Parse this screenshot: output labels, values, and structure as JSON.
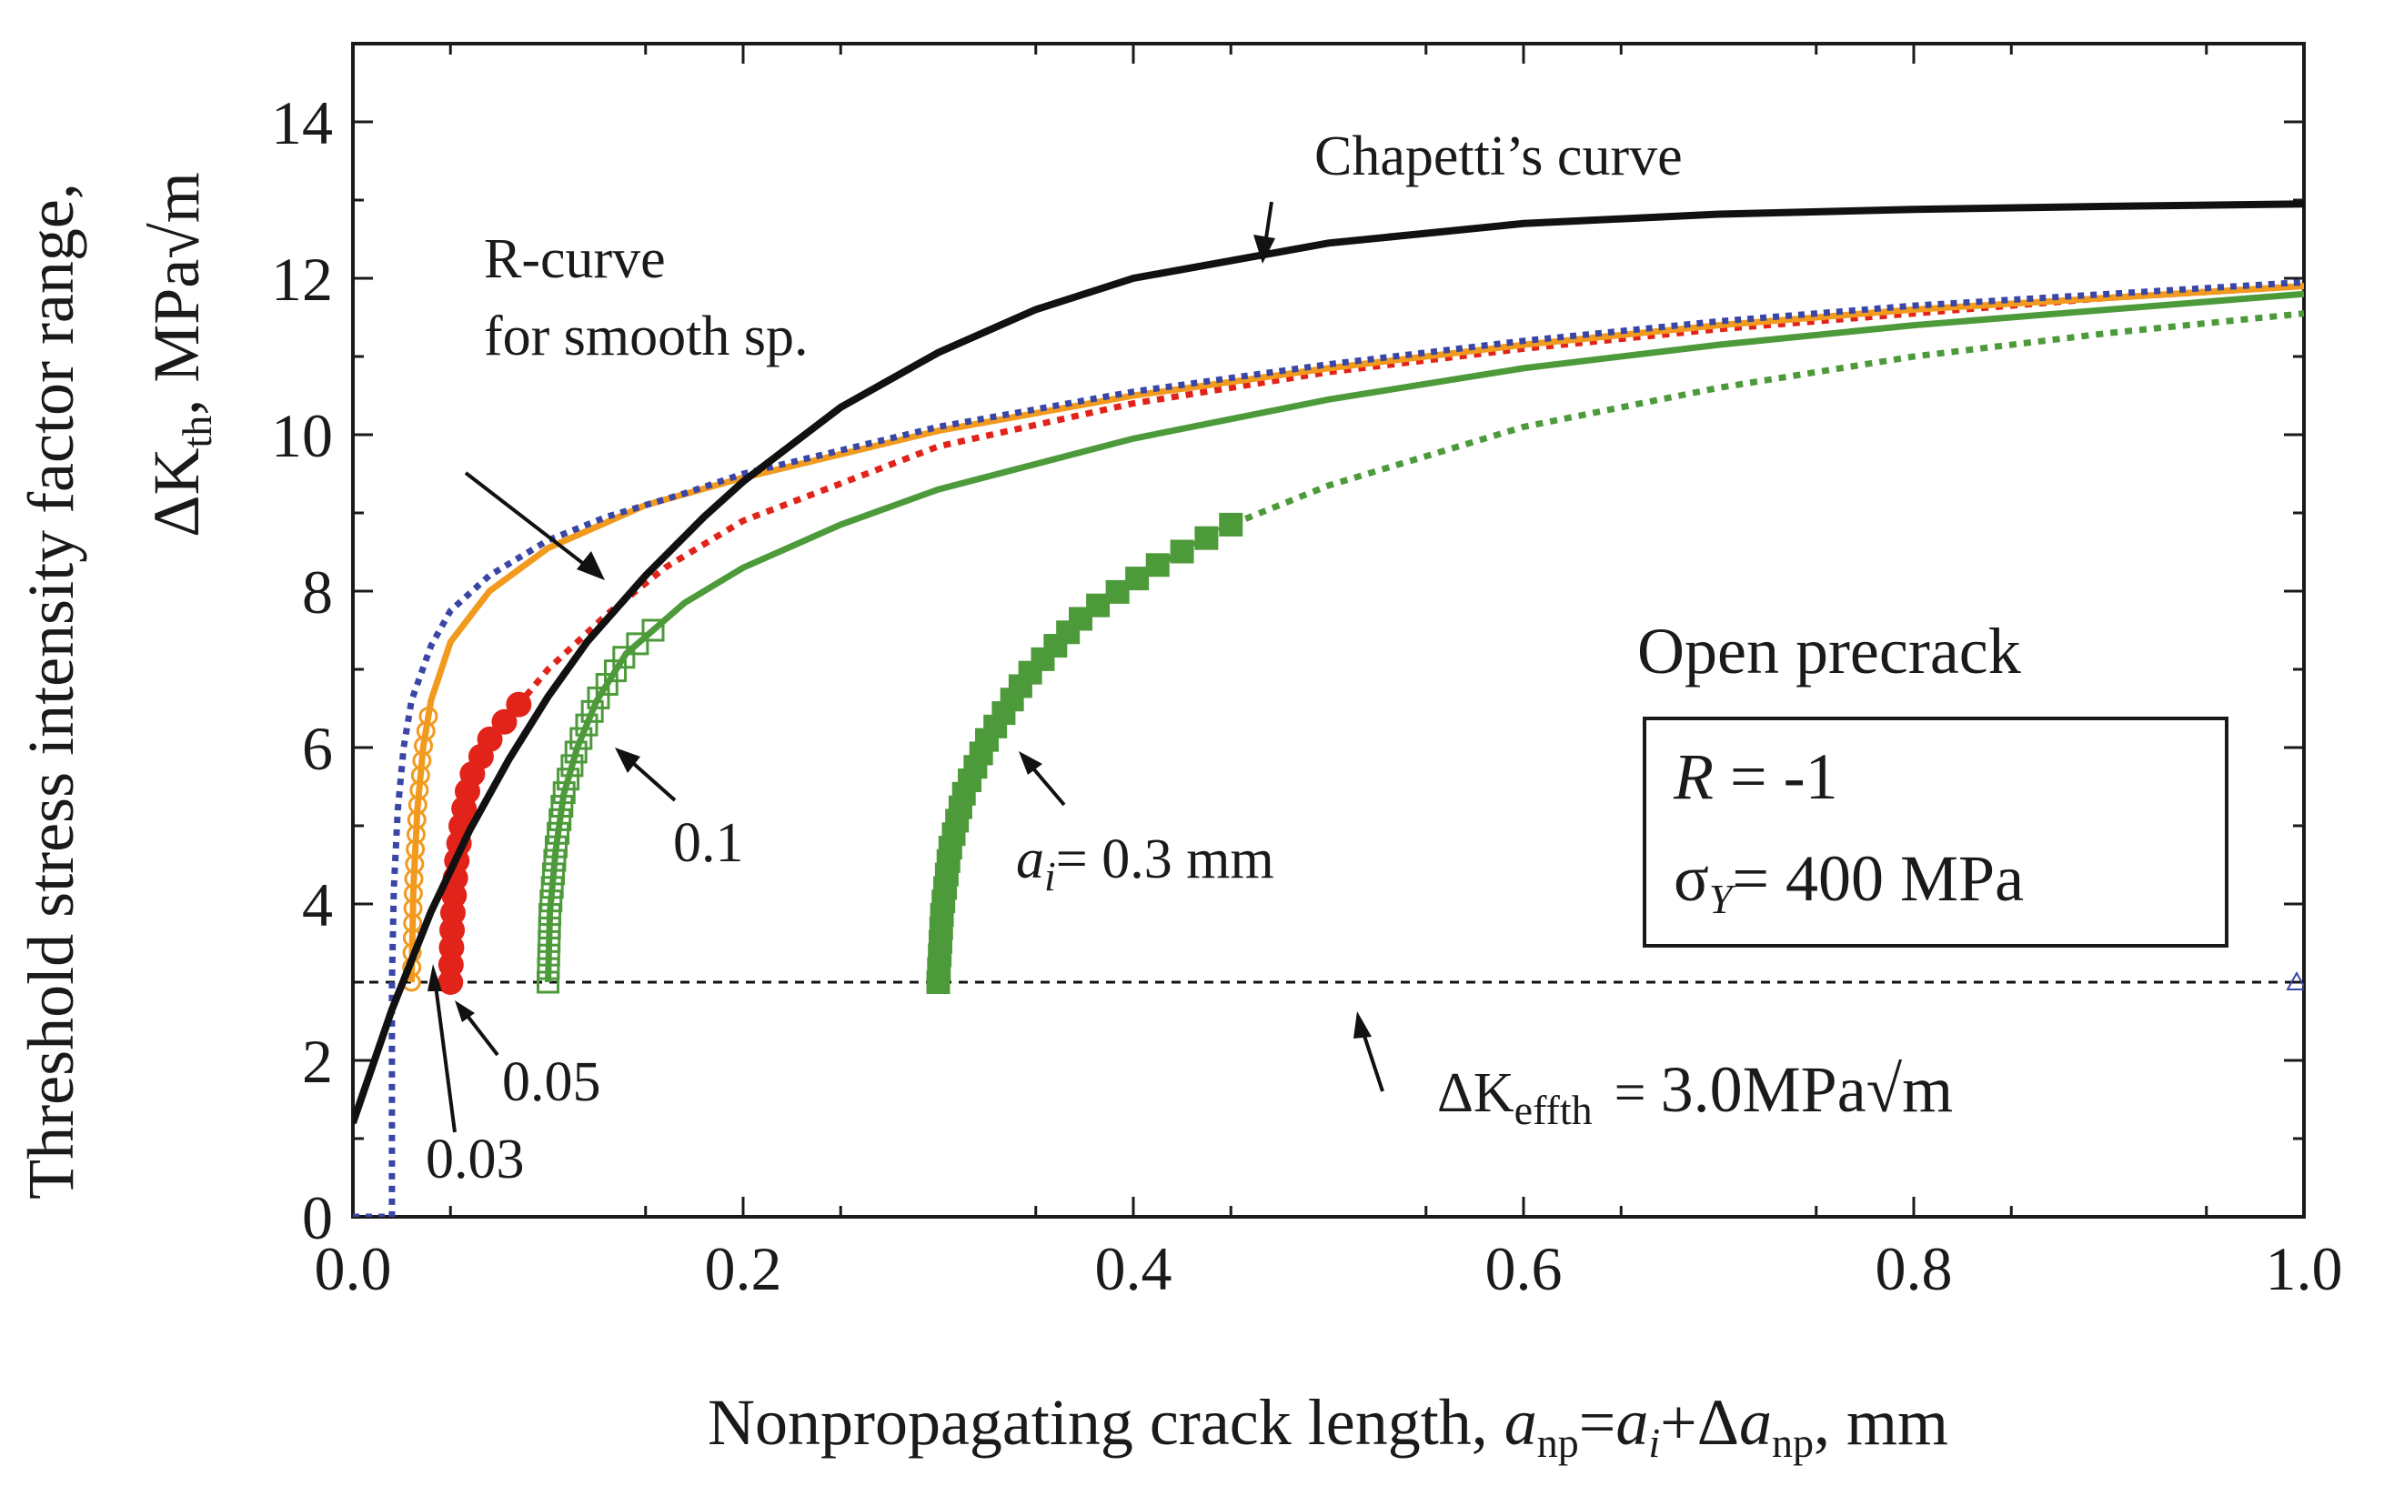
{
  "chart_data": {
    "type": "line",
    "title": "",
    "xlabel": {
      "prefix": "Nonpropagating crack length, ",
      "a": "a",
      "np": "np",
      "eq": "=",
      "i": "i",
      "plus": "+Δ",
      "suffix": ", mm"
    },
    "ylabel": {
      "line1": "Threshold stress intensity factor range,",
      "dk": "ΔK",
      "th": "th",
      "unit": ", MPa√m"
    },
    "xlim": [
      0.0,
      1.0
    ],
    "ylim": [
      0,
      15
    ],
    "xticks": [
      "0.0",
      "0.2",
      "0.4",
      "0.6",
      "0.8",
      "1.0"
    ],
    "yticks": [
      "0",
      "2",
      "4",
      "6",
      "8",
      "10",
      "12",
      "14"
    ],
    "colors": {
      "chapetti": "#111111",
      "rcurve": "#3a46a6",
      "orange": "#f19a1e",
      "red": "#e2231a",
      "green": "#4d9a3a",
      "threshold": "#111111"
    },
    "series": [
      {
        "name": "Chapetti's curve",
        "style": "solid",
        "color_key": "chapetti",
        "x": [
          0,
          0.02,
          0.04,
          0.06,
          0.08,
          0.1,
          0.12,
          0.15,
          0.18,
          0.2,
          0.25,
          0.3,
          0.35,
          0.4,
          0.5,
          0.6,
          0.7,
          0.8,
          0.9,
          1.0
        ],
        "y": [
          1.2,
          2.65,
          3.9,
          4.95,
          5.85,
          6.65,
          7.35,
          8.2,
          8.95,
          9.4,
          10.35,
          11.05,
          11.6,
          12.0,
          12.45,
          12.7,
          12.82,
          12.88,
          12.92,
          12.95
        ]
      },
      {
        "name": "R-curve for smooth sp.",
        "style": "dotted",
        "color_key": "rcurve",
        "x": [
          0,
          0.02,
          0.02,
          0.021,
          0.023,
          0.026,
          0.03,
          0.04,
          0.05,
          0.07,
          0.1,
          0.13,
          0.17,
          0.2,
          0.3,
          0.4,
          0.5,
          0.6,
          0.7,
          0.8,
          0.9,
          1.0
        ],
        "y": [
          0,
          0,
          3.0,
          4.2,
          5.2,
          6.0,
          6.6,
          7.3,
          7.75,
          8.2,
          8.65,
          8.95,
          9.25,
          9.5,
          10.1,
          10.55,
          10.9,
          11.2,
          11.45,
          11.65,
          11.8,
          11.95
        ]
      },
      {
        "name": "a_i = 0.03 mm",
        "style": "markers+line",
        "color_key": "orange",
        "x": [
          0.03,
          0.031,
          0.033,
          0.036,
          0.04,
          0.05,
          0.07,
          0.1,
          0.15,
          0.2,
          0.3,
          0.4,
          0.5,
          0.6,
          0.7,
          0.8,
          0.9,
          1.0
        ],
        "y": [
          3.0,
          4.2,
          5.2,
          6.0,
          6.6,
          7.35,
          8.0,
          8.55,
          9.1,
          9.45,
          10.05,
          10.5,
          10.85,
          11.15,
          11.4,
          11.6,
          11.75,
          11.9
        ]
      },
      {
        "name": "a_i = 0.05 mm",
        "style": "markers+dotted",
        "color_key": "red",
        "x": [
          0.05,
          0.051,
          0.053,
          0.056,
          0.06,
          0.07,
          0.085,
          0.1,
          0.13,
          0.16,
          0.2,
          0.3,
          0.4,
          0.5,
          0.6,
          0.7,
          0.8,
          0.9,
          1.0
        ],
        "y": [
          3.0,
          3.8,
          4.5,
          5.1,
          5.6,
          6.1,
          6.55,
          7.0,
          7.7,
          8.3,
          8.9,
          9.85,
          10.4,
          10.8,
          11.1,
          11.35,
          11.55,
          11.75,
          11.9
        ]
      },
      {
        "name": "a_i = 0.1 mm",
        "style": "markers+solid",
        "color_key": "green",
        "x": [
          0.1,
          0.101,
          0.104,
          0.108,
          0.115,
          0.125,
          0.14,
          0.17,
          0.2,
          0.25,
          0.3,
          0.4,
          0.5,
          0.6,
          0.7,
          0.8,
          0.9,
          1.0
        ],
        "y": [
          3.0,
          3.9,
          4.7,
          5.4,
          6.0,
          6.6,
          7.2,
          7.85,
          8.3,
          8.85,
          9.3,
          9.95,
          10.45,
          10.85,
          11.15,
          11.4,
          11.6,
          11.8
        ]
      },
      {
        "name": "a_i = 0.3 mm",
        "style": "markers+dotted",
        "color_key": "green",
        "x": [
          0.3,
          0.302,
          0.306,
          0.313,
          0.325,
          0.345,
          0.375,
          0.41,
          0.45,
          0.5,
          0.6,
          0.7,
          0.8,
          0.9,
          1.0
        ],
        "y": [
          3.0,
          3.9,
          4.7,
          5.4,
          6.1,
          6.9,
          7.7,
          8.3,
          8.85,
          9.35,
          10.1,
          10.6,
          11.0,
          11.3,
          11.55
        ]
      },
      {
        "name": "ΔK_effth = 3.0 MPa√m",
        "style": "dashed",
        "color_key": "threshold",
        "x": [
          0.0,
          1.0
        ],
        "y": [
          3.0,
          3.0
        ]
      }
    ],
    "annotations": {
      "chapetti": "Chapetti’s curve",
      "rcurve_line1": "R-curve",
      "rcurve_line2": "for smooth sp.",
      "label_01": "0.1",
      "label_005": "0.05",
      "label_003": "0.03",
      "label_03_a": "a",
      "label_03_i": "i",
      "label_03_rest": "= 0.3 mm",
      "open_precrack": "Open precrack",
      "box_r_sym": "R",
      "box_r_val": " = -1",
      "box_sigma": "σ",
      "box_sigma_sub": "Y",
      "box_sigma_val": "= 400 MPa",
      "keff_dk": "ΔK",
      "keff_sub": "effth",
      "keff_eq": "=",
      "keff_val": "3.0MPa√m"
    }
  }
}
